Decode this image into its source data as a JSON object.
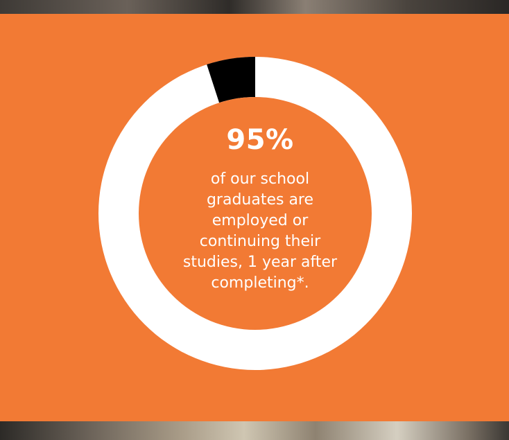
{
  "colors": {
    "panel_background": "#f27a34",
    "ring_track": "#ffffff",
    "ring_remainder": "#000000",
    "text": "#ffffff"
  },
  "stat": {
    "value": "95%",
    "description": "of our school graduates are employed or continuing their studies, 1 year after completing*.",
    "fraction": 0.95
  }
}
